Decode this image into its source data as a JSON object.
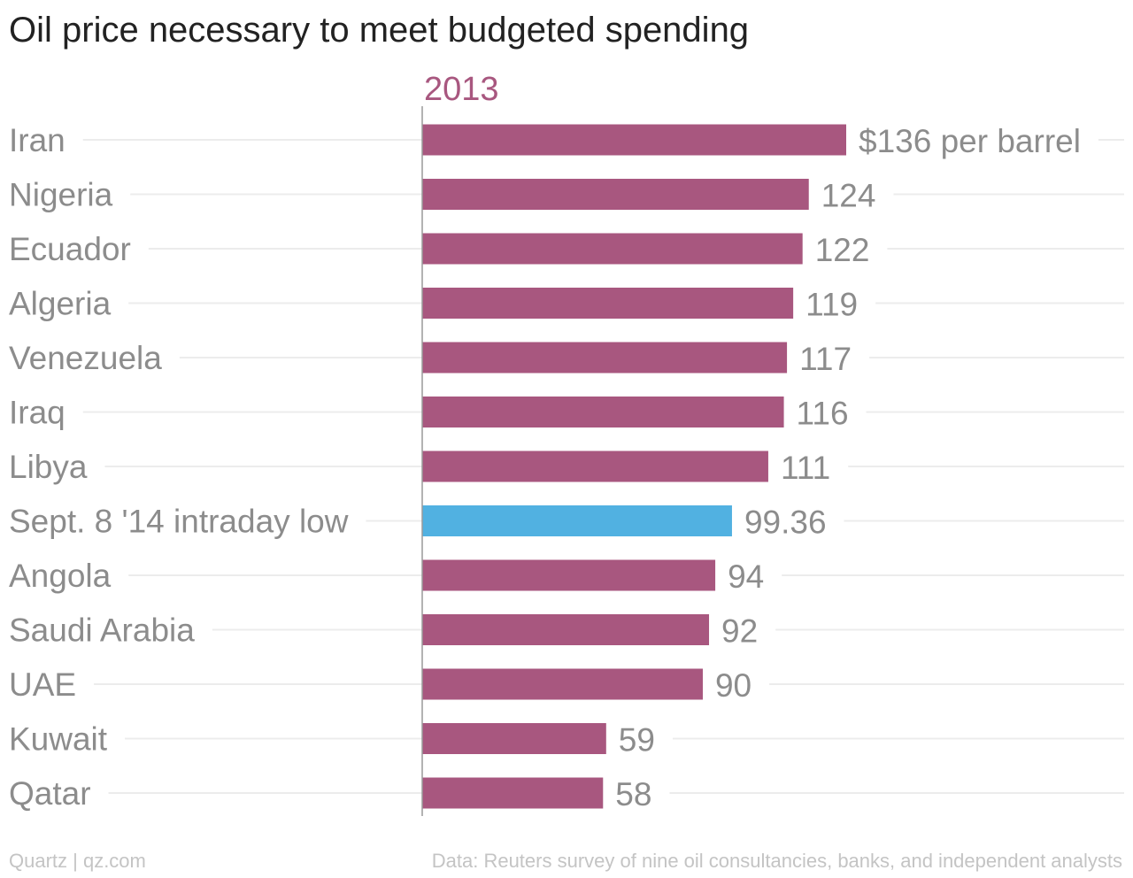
{
  "chart_data": {
    "type": "bar",
    "orientation": "horizontal",
    "title": "Oil price necessary to meet budgeted spending",
    "series_label": "2013",
    "categories": [
      "Iran",
      "Nigeria",
      "Ecuador",
      "Algeria",
      "Venezuela",
      "Iraq",
      "Libya",
      "Sept. 8 '14 intraday low",
      "Angola",
      "Saudi Arabia",
      "UAE",
      "Kuwait",
      "Qatar"
    ],
    "values": [
      136,
      124,
      122,
      119,
      117,
      116,
      111,
      99.36,
      94,
      92,
      90,
      59,
      58
    ],
    "value_labels": [
      "$136 per barrel",
      "124",
      "122",
      "119",
      "117",
      "116",
      "111",
      "99.36",
      "94",
      "92",
      "90",
      "59",
      "58"
    ],
    "highlight_category": "Sept. 8 '14 intraday low",
    "colors": {
      "bar": "#a8577f",
      "highlight": "#51b1e1",
      "series_label": "#a8577f",
      "category_label": "#8c8c8c",
      "value_label": "#8c8c8c",
      "guide_line": "#ececec",
      "axis": "#9a9a9a"
    },
    "xlim": [
      0,
      136
    ],
    "grid": false,
    "legend": "none"
  },
  "footer": {
    "source_left": "Quartz | qz.com",
    "source_right": "Data: Reuters survey of nine oil consultancies, banks, and independent analysts"
  }
}
